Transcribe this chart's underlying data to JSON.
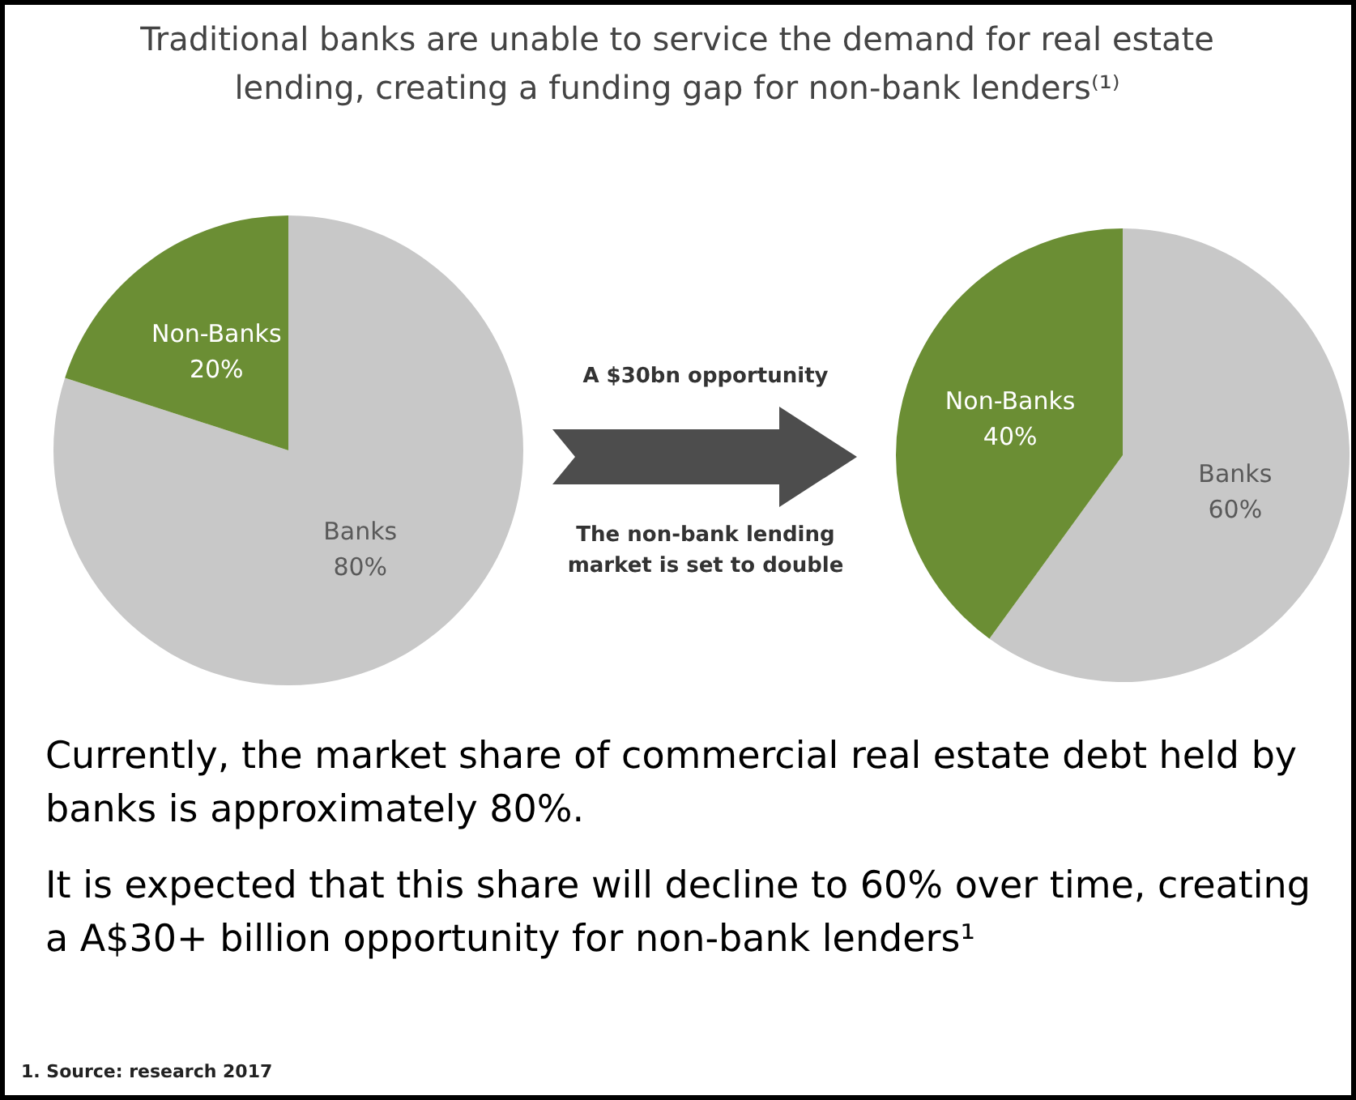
{
  "chart_data": [
    {
      "type": "pie",
      "title": "Traditional banks are unable to service the demand for real estate lending, creating a funding gap for non-bank lenders⁽¹⁾",
      "categories": [
        "Banks",
        "Non-Banks"
      ],
      "values": [
        80,
        20
      ],
      "value_labels": [
        "80%",
        "20%"
      ],
      "colors": [
        "#c8c8c8",
        "#6b8e34"
      ]
    },
    {
      "type": "pie",
      "categories": [
        "Banks",
        "Non-Banks"
      ],
      "values": [
        60,
        40
      ],
      "value_labels": [
        "60%",
        "40%"
      ],
      "colors": [
        "#c8c8c8",
        "#6b8e34"
      ]
    },
    {
      "type": "other",
      "annotations": [
        "A $30bn opportunity",
        "The non-bank lending market is set to double",
        "Currently, the market share of commercial real estate debt held by banks is approximately 80%.",
        "It is expected that this share will decline to 60% over time, creating a A$30+ billion opportunity for non-bank lenders¹",
        "1.   Source: research 2017"
      ]
    }
  ]
}
